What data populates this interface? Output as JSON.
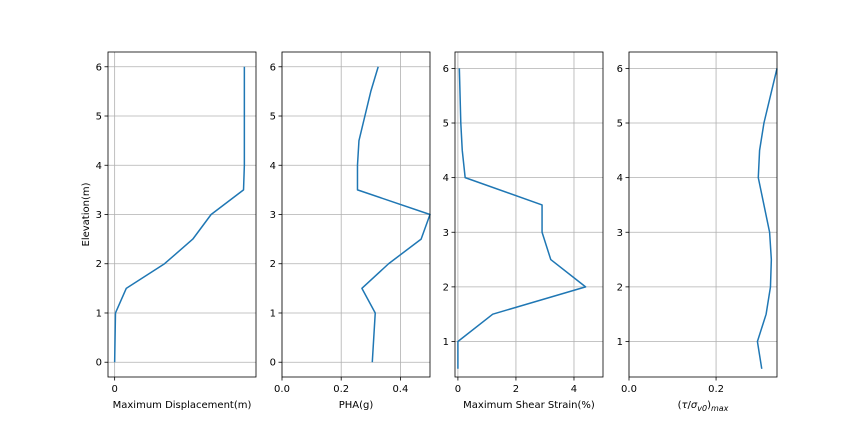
{
  "chart_data": [
    {
      "type": "line",
      "xlabel": "Maximum Displacement(m)",
      "ylabel": "Elevation(m)",
      "xlim": [
        -0.04,
        0.85
      ],
      "ylim": [
        -0.3,
        6.3
      ],
      "xticks": [
        0
      ],
      "xtick_labels": [
        "0"
      ],
      "yticks": [
        0,
        1,
        2,
        3,
        4,
        5,
        6
      ],
      "ytick_labels": [
        "0",
        "1",
        "2",
        "3",
        "4",
        "5",
        "6"
      ],
      "grid": true,
      "color": "#1f77b4",
      "points": {
        "x": [
          0.0,
          0.005,
          0.07,
          0.3,
          0.47,
          0.58,
          0.775,
          0.78,
          0.78,
          0.78
        ],
        "y": [
          0,
          1,
          1.5,
          2,
          2.5,
          3,
          3.5,
          4,
          5,
          6
        ]
      }
    },
    {
      "type": "line",
      "xlabel": "PHA(g)",
      "ylabel": "",
      "xlim": [
        0.0,
        0.5
      ],
      "ylim": [
        -0.3,
        6.3
      ],
      "xticks": [
        0.0,
        0.2,
        0.4
      ],
      "xtick_labels": [
        "0.0",
        "0.2",
        "0.4"
      ],
      "yticks": [
        0,
        1,
        2,
        3,
        4,
        5,
        6
      ],
      "ytick_labels": [
        "0",
        "1",
        "2",
        "3",
        "4",
        "5",
        "6"
      ],
      "grid": true,
      "color": "#1f77b4",
      "points": {
        "x": [
          0.305,
          0.315,
          0.27,
          0.36,
          0.47,
          0.5,
          0.255,
          0.255,
          0.26,
          0.3,
          0.325
        ],
        "y": [
          0,
          1,
          1.5,
          2,
          2.5,
          3,
          3.5,
          4,
          4.5,
          5.5,
          6
        ]
      }
    },
    {
      "type": "line",
      "xlabel": "Maximum Shear Strain(%)",
      "ylabel": "",
      "xlim": [
        -0.1,
        5.0
      ],
      "ylim": [
        0.35,
        6.3
      ],
      "xticks": [
        0,
        2,
        4
      ],
      "xtick_labels": [
        "0",
        "2",
        "4"
      ],
      "yticks": [
        1,
        2,
        3,
        4,
        5,
        6
      ],
      "ytick_labels": [
        "1",
        "2",
        "3",
        "4",
        "5",
        "6"
      ],
      "grid": true,
      "color": "#1f77b4",
      "points": {
        "x": [
          0.0,
          0.0,
          1.2,
          4.4,
          3.2,
          2.9,
          2.9,
          0.25,
          0.15,
          0.1,
          0.05
        ],
        "y": [
          0.5,
          1,
          1.5,
          2,
          2.5,
          3,
          3.5,
          4,
          4.5,
          5,
          6
        ]
      }
    },
    {
      "type": "line",
      "xlabel": "(τ/σv0)max",
      "ylabel": "",
      "xlim": [
        0.0,
        0.34
      ],
      "ylim": [
        0.35,
        6.3
      ],
      "xticks": [
        0.0,
        0.2
      ],
      "xtick_labels": [
        "0.0",
        "0.2"
      ],
      "yticks": [
        1,
        2,
        3,
        4,
        5,
        6
      ],
      "ytick_labels": [
        "1",
        "2",
        "3",
        "4",
        "5",
        "6"
      ],
      "grid": true,
      "color": "#1f77b4",
      "points": {
        "x": [
          0.305,
          0.295,
          0.315,
          0.325,
          0.327,
          0.323,
          0.31,
          0.297,
          0.3,
          0.31,
          0.325,
          0.34
        ],
        "y": [
          0.5,
          1,
          1.5,
          2,
          2.5,
          3,
          3.5,
          4,
          4.5,
          5,
          5.5,
          6
        ]
      }
    }
  ]
}
